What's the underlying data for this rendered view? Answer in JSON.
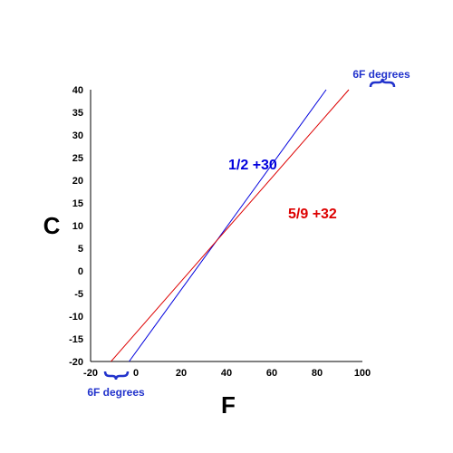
{
  "chart_data": {
    "type": "line",
    "title": "",
    "xlabel": "F",
    "ylabel": "C",
    "xlim": [
      -20,
      100
    ],
    "ylim": [
      -20,
      40
    ],
    "xticks": [
      "-20",
      "0",
      "20",
      "40",
      "60",
      "80",
      "100"
    ],
    "yticks": [
      "40",
      "35",
      "30",
      "25",
      "20",
      "15",
      "10",
      "5",
      "0",
      "-5",
      "-10",
      "-15",
      "-20"
    ],
    "grid": false,
    "colors": {
      "blue_series": "#0000dd",
      "red_series": "#dd0000",
      "blue_annotation": "#2233cc"
    },
    "series": [
      {
        "color": "blue",
        "points": [
          [
            -3,
            -20
          ],
          [
            84,
            40
          ]
        ]
      },
      {
        "color": "red",
        "points": [
          [
            -11,
            -20
          ],
          [
            94,
            40
          ]
        ]
      }
    ],
    "annotations": {
      "blue_eq": {
        "text": "1/2 +30",
        "color": "#0000dd"
      },
      "red_eq": {
        "text": "5/9 +32",
        "color": "#dd0000"
      },
      "top_gap": {
        "text": "6F degrees",
        "color": "#2233cc"
      },
      "bottom_gap": {
        "text": "6F degrees",
        "color": "#2233cc"
      }
    }
  }
}
